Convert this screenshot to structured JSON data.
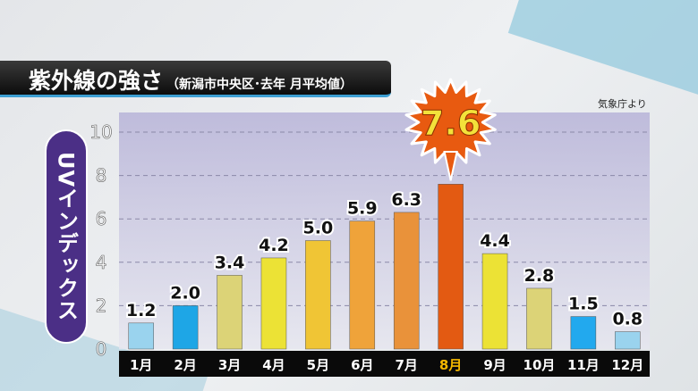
{
  "header": {
    "title": "紫外線の強さ",
    "subtitle": "（新潟市中央区･去年 月平均値）",
    "source": "気象庁より"
  },
  "chart_data": {
    "type": "bar",
    "title": "紫外線の強さ",
    "subtitle": "（新潟市中央区･去年 月平均値）",
    "ylabel": "UVインデックス",
    "xlabel": "",
    "ylim": [
      0,
      10
    ],
    "yticks": [
      0,
      2,
      4,
      6,
      8,
      10
    ],
    "grid": true,
    "categories": [
      "1月",
      "2月",
      "3月",
      "4月",
      "5月",
      "6月",
      "7月",
      "8月",
      "9月",
      "10月",
      "11月",
      "12月"
    ],
    "values": [
      1.2,
      2.0,
      3.4,
      4.2,
      5.0,
      5.9,
      6.3,
      7.6,
      4.4,
      2.8,
      1.5,
      0.8
    ],
    "value_labels": [
      "1.2",
      "2.0",
      "3.4",
      "4.2",
      "5.0",
      "5.9",
      "6.3",
      "7.6",
      "4.4",
      "2.8",
      "1.5",
      "0.8"
    ],
    "highlight": {
      "category": "8月",
      "value": "7.6"
    },
    "colors": [
      "#9ad3ee",
      "#1ea6e6",
      "#dcd377",
      "#ece235",
      "#f0c535",
      "#efa33a",
      "#e9923a",
      "#e35a12",
      "#ece235",
      "#dcd377",
      "#22a9ee",
      "#9ad3ee"
    ],
    "highlight_label_color": "#f5b800"
  }
}
